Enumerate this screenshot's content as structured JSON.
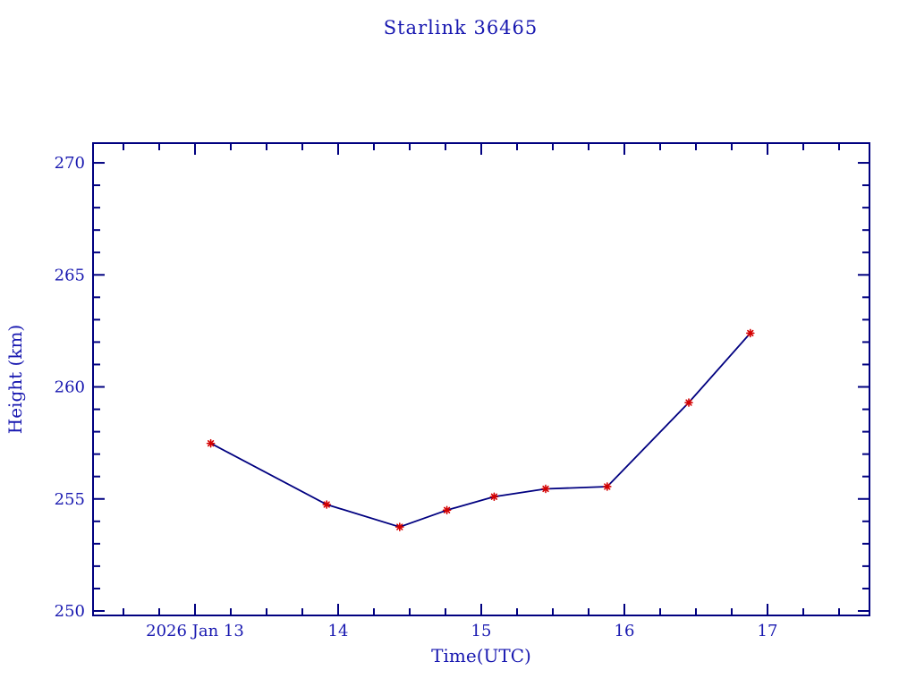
{
  "window": {
    "background": "#ffffff"
  },
  "colors": {
    "text": "#1818b0",
    "axis": "#000080",
    "series_line": "#000080",
    "marker": "#d40000",
    "background": "#ffffff"
  },
  "chart_data": {
    "type": "line",
    "title": "Starlink 36465",
    "xlabel": "Time(UTC)",
    "ylabel": "Height (km)",
    "legend": "none",
    "grid": "off",
    "marker_style": "red-asterisk",
    "xlim": [
      12.2875,
      17.7125
    ],
    "ylim": [
      249.8,
      270.88
    ],
    "x_major_ticks": [
      13,
      14,
      15,
      16,
      17
    ],
    "x_major_tick_labels": [
      "2026 Jan 13",
      "14",
      "15",
      "16",
      "17"
    ],
    "x_minor_step": 0.25,
    "y_major_ticks": [
      250,
      255,
      260,
      265,
      270
    ],
    "y_major_tick_labels": [
      "250",
      "255",
      "260",
      "265",
      "270"
    ],
    "y_minor_step": 1,
    "points": [
      [
        13.11,
        257.48
      ],
      [
        13.92,
        254.75
      ],
      [
        14.43,
        253.75
      ],
      [
        14.76,
        254.5
      ],
      [
        15.09,
        255.1
      ],
      [
        15.45,
        255.45
      ],
      [
        15.88,
        255.55
      ],
      [
        16.45,
        259.3
      ],
      [
        16.88,
        262.4
      ]
    ]
  }
}
